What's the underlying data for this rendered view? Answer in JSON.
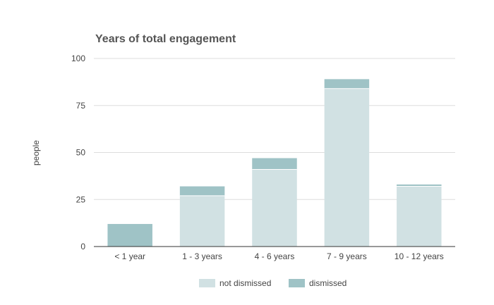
{
  "chart_data": {
    "type": "bar",
    "stacked": true,
    "title": "Years of total engagement",
    "xlabel": "",
    "ylabel": "people",
    "ylim": [
      0,
      100
    ],
    "yticks": [
      "0",
      "25",
      "50",
      "75",
      "100"
    ],
    "categories": [
      "< 1 year",
      "1 - 3 years",
      "4 - 6 years",
      "7 - 9 years",
      "10 - 12 years"
    ],
    "series": [
      {
        "name": "not dismissed",
        "values": [
          0,
          27,
          41,
          84,
          32
        ],
        "color": "#d1e1e3"
      },
      {
        "name": "dismissed",
        "values": [
          12,
          5,
          6,
          5,
          1
        ],
        "color": "#9fc3c6"
      }
    ],
    "legend_position": "bottom",
    "grid": true
  }
}
